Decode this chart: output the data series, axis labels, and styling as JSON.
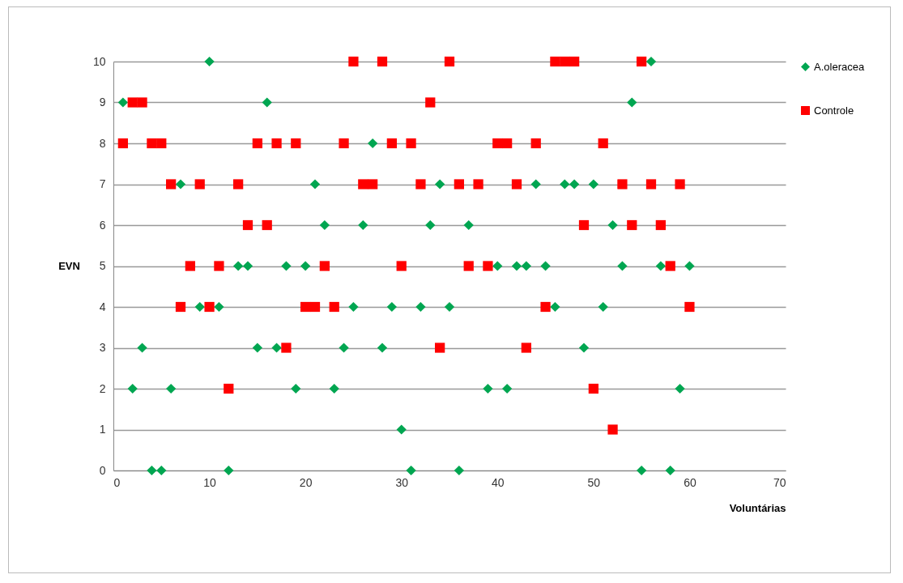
{
  "chart_data": {
    "type": "scatter",
    "xlabel": "Voluntárias",
    "ylabel": "EVN",
    "xlim": [
      0,
      70
    ],
    "xticks": [
      0,
      10,
      20,
      30,
      40,
      50,
      60,
      70
    ],
    "ylim": [
      0,
      10
    ],
    "yticks": [
      0,
      1,
      2,
      3,
      4,
      5,
      6,
      7,
      8,
      9,
      10
    ],
    "grid": "y",
    "legend": "right",
    "series": [
      {
        "name": "A.oleracea",
        "color": "#00a651",
        "marker": "diamond",
        "x": [
          10,
          56,
          1,
          16,
          54,
          27,
          7,
          21,
          34,
          44,
          47,
          48,
          50,
          22,
          26,
          33,
          37,
          52,
          13,
          14,
          18,
          20,
          40,
          42,
          43,
          45,
          53,
          57,
          60,
          9,
          11,
          25,
          29,
          32,
          35,
          46,
          51,
          3,
          15,
          17,
          24,
          28,
          49,
          2,
          6,
          19,
          23,
          39,
          41,
          59,
          30,
          4,
          5,
          12,
          31,
          36,
          55,
          58
        ],
        "values": [
          10,
          10,
          9,
          9,
          9,
          8,
          7,
          7,
          7,
          7,
          7,
          7,
          7,
          6,
          6,
          6,
          6,
          6,
          5,
          5,
          5,
          5,
          5,
          5,
          5,
          5,
          5,
          5,
          5,
          4,
          4,
          4,
          4,
          4,
          4,
          4,
          4,
          3,
          3,
          3,
          3,
          3,
          3,
          2,
          2,
          2,
          2,
          2,
          2,
          2,
          1,
          0,
          0,
          0,
          0,
          0,
          0,
          0
        ]
      },
      {
        "name": "Controle",
        "color": "#ff0000",
        "marker": "square",
        "x": [
          25,
          28,
          35,
          46,
          47,
          48,
          55,
          2,
          3,
          33,
          1,
          4,
          5,
          15,
          17,
          19,
          24,
          29,
          31,
          40,
          41,
          44,
          51,
          6,
          9,
          13,
          26,
          27,
          32,
          36,
          38,
          42,
          53,
          56,
          59,
          14,
          16,
          49,
          54,
          57,
          8,
          11,
          22,
          30,
          37,
          39,
          58,
          7,
          10,
          20,
          21,
          23,
          45,
          60,
          18,
          34,
          43,
          12,
          50,
          52
        ],
        "values": [
          10,
          10,
          10,
          10,
          10,
          10,
          10,
          9,
          9,
          9,
          8,
          8,
          8,
          8,
          8,
          8,
          8,
          8,
          8,
          8,
          8,
          8,
          8,
          7,
          7,
          7,
          7,
          7,
          7,
          7,
          7,
          7,
          7,
          7,
          7,
          6,
          6,
          6,
          6,
          6,
          5,
          5,
          5,
          5,
          5,
          5,
          5,
          4,
          4,
          4,
          4,
          4,
          4,
          4,
          3,
          3,
          3,
          2,
          2,
          1
        ]
      }
    ]
  }
}
